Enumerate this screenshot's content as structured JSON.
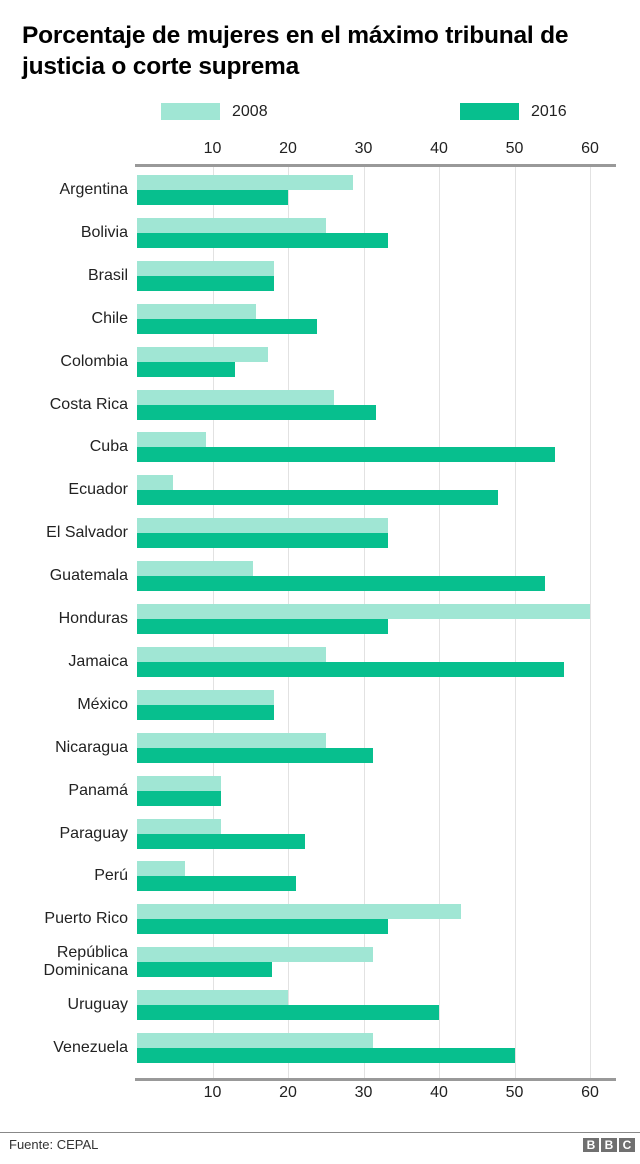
{
  "title": "Porcentaje de mujeres en el máximo tribunal de justicia o corte suprema",
  "legend": [
    {
      "label": "2008",
      "color": "#a0e6d4"
    },
    {
      "label": "2016",
      "color": "#07bf8e"
    }
  ],
  "footer": {
    "source": "Fuente: CEPAL",
    "logo_letters": [
      "B",
      "B",
      "C"
    ]
  },
  "chart_data": {
    "type": "bar",
    "orientation": "horizontal",
    "title": "Porcentaje de mujeres en el máximo tribunal de justicia o corte suprema",
    "xlabel": "",
    "ylabel": "",
    "xlim": [
      0,
      63
    ],
    "x_ticks": [
      10,
      20,
      30,
      40,
      50,
      60
    ],
    "tick_labels_top_and_bottom": true,
    "grid": true,
    "legend_position": "top",
    "categories": [
      "Argentina",
      "Bolivia",
      "Brasil",
      "Chile",
      "Colombia",
      "Costa Rica",
      "Cuba",
      "Ecuador",
      "El Salvador",
      "Guatemala",
      "Honduras",
      "Jamaica",
      "México",
      "Nicaragua",
      "Panamá",
      "Paraguay",
      "Perú",
      "Puerto Rico",
      "República Dominicana",
      "Uruguay",
      "Venezuela"
    ],
    "series": [
      {
        "name": "2008",
        "color": "#a0e6d4",
        "values": [
          28.6,
          25.0,
          18.2,
          15.8,
          17.4,
          26.1,
          9.1,
          4.8,
          33.3,
          15.4,
          60.0,
          25.0,
          18.2,
          25.0,
          11.1,
          11.1,
          6.3,
          42.9,
          31.3,
          20.0,
          31.3
        ]
      },
      {
        "name": "2016",
        "color": "#07bf8e",
        "values": [
          20.0,
          33.3,
          18.2,
          23.8,
          13.0,
          31.6,
          55.4,
          47.8,
          33.3,
          54.1,
          33.3,
          56.5,
          18.2,
          31.3,
          11.1,
          22.2,
          21.1,
          33.3,
          17.9,
          40.0,
          50.0
        ]
      }
    ]
  }
}
